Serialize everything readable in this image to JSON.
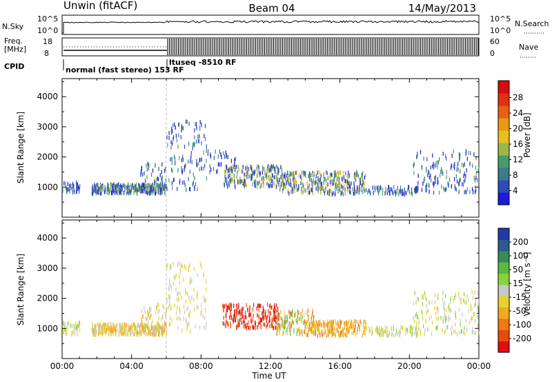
{
  "header": {
    "site": "Unwin (fitACF)",
    "beam": "Beam 04",
    "date": "14/May/2013"
  },
  "strips": {
    "nsky_label": "N.Sky",
    "nsky_ticks": [
      "10^5",
      "10^0"
    ],
    "nsearch_label": "N.Search",
    "nsearch_ticks": [
      "10^5",
      "10^0"
    ],
    "freq_label_1": "Freq.",
    "freq_label_2": "[MHz]",
    "freq_ticks": [
      "18",
      "8"
    ],
    "nave_label": "Nave",
    "nave_ticks": [
      "60",
      "0"
    ],
    "cpid_label": "CPID",
    "cpid_text_1": "normal (fast stereo) 153 RF",
    "cpid_text_2": "ltuseq -8510 RF"
  },
  "chart_data": [
    {
      "type": "heatmap",
      "name": "power",
      "ylabel": "Slant Range [km]",
      "xlabel": "",
      "xticks": [
        "00:00",
        "04:00",
        "08:00",
        "12:00",
        "16:00",
        "20:00",
        "00:00"
      ],
      "xlim_hours": [
        0,
        24
      ],
      "yticks": [
        1000,
        2000,
        3000,
        4000
      ],
      "ylim": [
        0,
        4600
      ],
      "colorbar": {
        "label": "Power [dB]",
        "ticks": [
          "4",
          "8",
          "12",
          "16",
          "20",
          "24",
          "28"
        ],
        "colors": [
          "#1a1ae0",
          "#2e4bb8",
          "#3d7a8a",
          "#4a9a6a",
          "#9ab84a",
          "#e6c020",
          "#e89a10",
          "#e86010",
          "#e03010",
          "#d80a0a"
        ]
      },
      "clusters": [
        {
          "t0": 0.0,
          "t1": 1.0,
          "r0": 780,
          "r1": 1150,
          "density": 0.5,
          "color_range": [
            0,
            2
          ]
        },
        {
          "t0": 1.7,
          "t1": 6.0,
          "r0": 780,
          "r1": 1100,
          "density": 0.85,
          "color_range": [
            0,
            4
          ]
        },
        {
          "t0": 4.5,
          "t1": 6.0,
          "r0": 1000,
          "r1": 1800,
          "density": 0.35,
          "color_range": [
            0,
            3
          ]
        },
        {
          "t0": 6.0,
          "t1": 8.3,
          "r0": 900,
          "r1": 3200,
          "density": 0.6,
          "color_range": [
            0,
            3
          ]
        },
        {
          "t0": 8.3,
          "t1": 10.0,
          "r0": 1500,
          "r1": 2200,
          "density": 0.25,
          "color_range": [
            0,
            2
          ]
        },
        {
          "t0": 9.3,
          "t1": 12.8,
          "r0": 1000,
          "r1": 1700,
          "density": 0.7,
          "color_range": [
            0,
            5
          ]
        },
        {
          "t0": 12.5,
          "t1": 17.5,
          "r0": 750,
          "r1": 1500,
          "density": 0.75,
          "color_range": [
            0,
            5
          ]
        },
        {
          "t0": 17.5,
          "t1": 20.5,
          "r0": 750,
          "r1": 1000,
          "density": 0.3,
          "color_range": [
            0,
            3
          ]
        },
        {
          "t0": 20.2,
          "t1": 24.0,
          "r0": 800,
          "r1": 2200,
          "density": 0.45,
          "color_range": [
            0,
            3
          ]
        }
      ]
    },
    {
      "type": "heatmap",
      "name": "velocity",
      "ylabel": "Slant Range [km]",
      "xlabel": "Time UT",
      "xticks": [
        "00:00",
        "04:00",
        "08:00",
        "12:00",
        "16:00",
        "20:00",
        "00:00"
      ],
      "xlim_hours": [
        0,
        24
      ],
      "yticks": [
        1000,
        2000,
        3000,
        4000
      ],
      "ylim": [
        0,
        4600
      ],
      "colorbar": {
        "label": "Velocity [m s⁻¹]",
        "ticks": [
          "200",
          "100",
          "50",
          "15",
          "-15",
          "-50",
          "-100",
          "-200"
        ],
        "colors": [
          "#1e3ca8",
          "#2d5a8c",
          "#3a8a5a",
          "#5ab83c",
          "#8ad23c",
          "#c8c8c8",
          "#e6d22a",
          "#f0aa1e",
          "#f07814",
          "#e84a0a",
          "#e01010"
        ]
      },
      "clusters": [
        {
          "t0": 0.0,
          "t1": 1.0,
          "r0": 780,
          "r1": 1200,
          "density": 0.45,
          "color_range": [
            4,
            6
          ]
        },
        {
          "t0": 1.7,
          "t1": 6.0,
          "r0": 780,
          "r1": 1150,
          "density": 0.85,
          "color_range": [
            5,
            7
          ]
        },
        {
          "t0": 4.5,
          "t1": 6.0,
          "r0": 1000,
          "r1": 1800,
          "density": 0.35,
          "color_range": [
            5,
            7
          ]
        },
        {
          "t0": 6.0,
          "t1": 8.3,
          "r0": 900,
          "r1": 3200,
          "density": 0.6,
          "color_range": [
            5,
            6
          ]
        },
        {
          "t0": 9.2,
          "t1": 12.5,
          "r0": 1000,
          "r1": 1800,
          "density": 0.75,
          "color_range": [
            9,
            10
          ]
        },
        {
          "t0": 12.3,
          "t1": 14.5,
          "r0": 800,
          "r1": 1600,
          "density": 0.7,
          "color_range": [
            3,
            9
          ]
        },
        {
          "t0": 14.0,
          "t1": 17.5,
          "r0": 750,
          "r1": 1250,
          "density": 0.75,
          "color_range": [
            6,
            8
          ]
        },
        {
          "t0": 17.5,
          "t1": 20.5,
          "r0": 750,
          "r1": 1050,
          "density": 0.3,
          "color_range": [
            4,
            6
          ]
        },
        {
          "t0": 20.2,
          "t1": 24.0,
          "r0": 800,
          "r1": 2200,
          "density": 0.45,
          "color_range": [
            4,
            6
          ]
        }
      ]
    }
  ]
}
